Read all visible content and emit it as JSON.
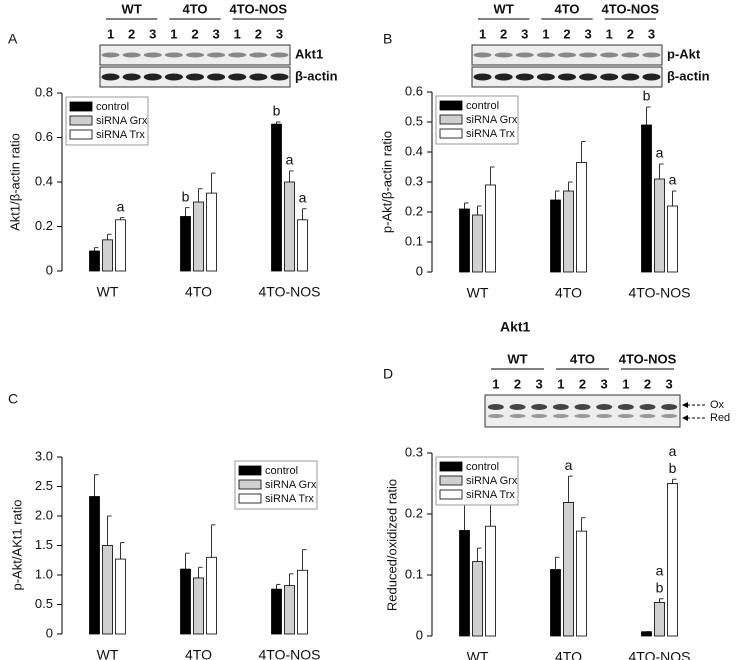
{
  "chart_data": [
    {
      "type": "bar",
      "panel": "A",
      "ylabel": "Akt1/β-actin ratio",
      "categories": [
        "WT",
        "4TO",
        "4TO-NOS"
      ],
      "ylim": [
        0,
        0.8
      ],
      "yticks": [
        0,
        0.2,
        0.4,
        0.6,
        0.8
      ],
      "legend": "upper left",
      "blot": {
        "groups": [
          "WT",
          "4TO",
          "4TO-NOS"
        ],
        "lanes": [
          "1",
          "2",
          "3"
        ],
        "bands": [
          "Akt1",
          "β-actin"
        ]
      },
      "series": [
        {
          "name": "control",
          "color": "#000000",
          "values": [
            0.09,
            0.245,
            0.66
          ],
          "errors": [
            0.015,
            0.04,
            0.01
          ],
          "letters": [
            null,
            [
              "b"
            ],
            [
              "b"
            ]
          ]
        },
        {
          "name": "siRNA Grx",
          "color": "#d0d0d0",
          "values": [
            0.14,
            0.31,
            0.4
          ],
          "errors": [
            0.025,
            0.06,
            0.05
          ],
          "letters": [
            null,
            null,
            [
              "a"
            ]
          ]
        },
        {
          "name": "siRNA Trx",
          "color": "#ffffff",
          "values": [
            0.23,
            0.35,
            0.23
          ],
          "errors": [
            0.01,
            0.09,
            0.05
          ],
          "letters": [
            [
              "a"
            ],
            null,
            [
              "a"
            ]
          ]
        }
      ]
    },
    {
      "type": "bar",
      "panel": "B",
      "ylabel": "p-Akt/β-actin ratio",
      "categories": [
        "WT",
        "4TO",
        "4TO-NOS"
      ],
      "ylim": [
        0,
        0.6
      ],
      "yticks": [
        0,
        0.1,
        0.2,
        0.3,
        0.4,
        0.5,
        0.6
      ],
      "legend": "upper left",
      "blot": {
        "groups": [
          "WT",
          "4TO",
          "4TO-NOS"
        ],
        "lanes": [
          "1",
          "2",
          "3"
        ],
        "bands": [
          "p-Akt",
          "β-actin"
        ]
      },
      "series": [
        {
          "name": "control",
          "color": "#000000",
          "values": [
            0.21,
            0.24,
            0.49
          ],
          "errors": [
            0.02,
            0.03,
            0.06
          ],
          "letters": [
            null,
            null,
            [
              "b"
            ]
          ]
        },
        {
          "name": "siRNA Grx",
          "color": "#d0d0d0",
          "values": [
            0.19,
            0.27,
            0.31
          ],
          "errors": [
            0.03,
            0.03,
            0.05
          ],
          "letters": [
            null,
            null,
            [
              "a"
            ]
          ]
        },
        {
          "name": "siRNA Trx",
          "color": "#ffffff",
          "values": [
            0.29,
            0.365,
            0.22
          ],
          "errors": [
            0.06,
            0.07,
            0.05
          ],
          "letters": [
            null,
            null,
            [
              "a"
            ]
          ]
        }
      ]
    },
    {
      "type": "bar",
      "panel": "C",
      "ylabel": "p-Akt/AKt1  ratio",
      "categories": [
        "WT",
        "4TO",
        "4TO-NOS"
      ],
      "ylim": [
        0,
        3.0
      ],
      "yticks": [
        0,
        0.5,
        {
          "value": 1,
          "label": "1.0"
        },
        1.5,
        {
          "value": 2,
          "label": "2.0"
        },
        2.5,
        {
          "value": 3,
          "label": "3.0"
        }
      ],
      "legend": "upper right",
      "series": [
        {
          "name": "control",
          "color": "#000000",
          "values": [
            2.33,
            1.1,
            0.76
          ],
          "errors": [
            0.37,
            0.27,
            0.08
          ]
        },
        {
          "name": "siRNA Grx",
          "color": "#d0d0d0",
          "values": [
            1.5,
            0.95,
            0.82
          ],
          "errors": [
            0.5,
            0.18,
            0.2
          ]
        },
        {
          "name": "siRNA Trx",
          "color": "#ffffff",
          "values": [
            1.27,
            1.3,
            1.08
          ],
          "errors": [
            0.28,
            0.55,
            0.35
          ]
        }
      ]
    },
    {
      "type": "bar",
      "panel": "D",
      "ylabel": "Reduced/oxidized ratio",
      "categories": [
        "WT",
        "4TO",
        "4TO-NOS"
      ],
      "ylim": [
        0,
        0.3
      ],
      "yticks": [
        0,
        0.1,
        0.2,
        0.3
      ],
      "legend": "upper left",
      "blot": {
        "title": "Akt1",
        "groups": [
          "WT",
          "4TO",
          "4TO-NOS"
        ],
        "lanes": [
          "1",
          "2",
          "3"
        ],
        "bands": [
          "Ox",
          "Red"
        ]
      },
      "series": [
        {
          "name": "control",
          "color": "#000000",
          "values": [
            0.173,
            0.109,
            0.007
          ],
          "errors": [
            0.055,
            0.02,
            0
          ],
          "letters": [
            null,
            null,
            null
          ]
        },
        {
          "name": "siRNA Grx",
          "color": "#d0d0d0",
          "values": [
            0.122,
            0.219,
            0.055
          ],
          "errors": [
            0.022,
            0.043,
            0.006
          ],
          "letters": [
            null,
            [
              "a"
            ],
            [
              "a",
              "b"
            ]
          ]
        },
        {
          "name": "siRNA Trx",
          "color": "#ffffff",
          "values": [
            0.18,
            0.172,
            0.25
          ],
          "errors": [
            0.037,
            0.022,
            0.007
          ],
          "letters": [
            null,
            null,
            [
              "a",
              "b"
            ]
          ]
        }
      ]
    }
  ]
}
